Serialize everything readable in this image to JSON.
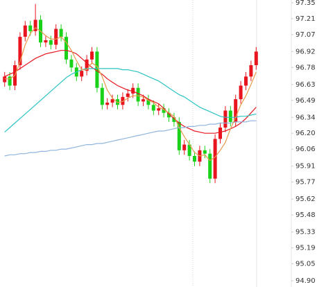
{
  "chart_data": {
    "type": "candlestick",
    "up_color": "#e8141e",
    "down_color": "#19d219",
    "open": [
      96.65,
      96.7,
      96.62,
      96.8,
      97.05,
      97.15,
      97.1,
      97.2,
      97.0,
      97.02,
      96.98,
      97.12,
      97.05,
      96.85,
      96.78,
      96.7,
      96.75,
      96.85,
      96.92,
      96.6,
      96.45,
      96.47,
      96.5,
      96.45,
      96.52,
      96.55,
      96.6,
      96.48,
      96.5,
      96.45,
      96.4,
      96.42,
      96.38,
      96.34,
      96.3,
      96.05,
      96.1,
      96.0,
      95.95,
      96.05,
      96.02,
      95.8,
      96.15,
      96.25,
      96.4,
      96.3,
      96.5,
      96.62,
      96.7,
      96.8
    ],
    "high": [
      96.74,
      96.74,
      96.84,
      97.09,
      97.19,
      97.19,
      97.34,
      97.24,
      97.06,
      97.06,
      97.16,
      97.16,
      97.09,
      96.89,
      96.82,
      96.79,
      96.89,
      96.96,
      96.96,
      96.64,
      96.51,
      96.54,
      96.54,
      96.56,
      96.59,
      96.64,
      96.64,
      96.54,
      96.54,
      96.49,
      96.46,
      96.46,
      96.42,
      96.38,
      96.34,
      96.14,
      96.14,
      96.04,
      96.09,
      96.09,
      96.06,
      96.19,
      96.29,
      96.44,
      96.44,
      96.54,
      96.66,
      96.74,
      96.84,
      96.96
    ],
    "low": [
      96.61,
      96.58,
      96.58,
      96.76,
      97.01,
      97.06,
      97.06,
      96.96,
      96.96,
      96.94,
      96.94,
      97.01,
      96.81,
      96.74,
      96.66,
      96.66,
      96.71,
      96.81,
      96.56,
      96.41,
      96.41,
      96.43,
      96.41,
      96.41,
      96.48,
      96.51,
      96.44,
      96.44,
      96.41,
      96.36,
      96.36,
      96.34,
      96.3,
      96.26,
      96.01,
      96.01,
      95.96,
      95.91,
      95.91,
      95.98,
      95.76,
      95.76,
      96.11,
      96.21,
      96.26,
      96.26,
      96.46,
      96.58,
      96.66,
      96.76
    ],
    "close": [
      96.7,
      96.62,
      96.8,
      97.05,
      97.15,
      97.1,
      97.2,
      97.0,
      97.02,
      96.98,
      97.12,
      97.05,
      96.85,
      96.78,
      96.7,
      96.75,
      96.85,
      96.92,
      96.6,
      96.45,
      96.47,
      96.5,
      96.45,
      96.52,
      96.55,
      96.6,
      96.48,
      96.5,
      96.45,
      96.4,
      96.42,
      96.38,
      96.34,
      96.3,
      96.05,
      96.1,
      96.0,
      95.95,
      96.05,
      96.02,
      95.8,
      96.15,
      96.25,
      96.4,
      96.3,
      96.5,
      96.62,
      96.7,
      96.8,
      96.92
    ],
    "series": [
      {
        "color": "#e8141e",
        "values": [
          96.7,
          96.72,
          96.74,
          96.77,
          96.8,
          96.83,
          96.86,
          96.88,
          96.9,
          96.91,
          96.92,
          96.93,
          96.93,
          96.92,
          96.9,
          96.86,
          96.82,
          96.78,
          96.75,
          96.72,
          96.68,
          96.65,
          96.62,
          96.6,
          96.58,
          96.57,
          96.55,
          96.53,
          96.5,
          96.48,
          96.46,
          96.42,
          96.37,
          96.33,
          96.29,
          96.26,
          96.24,
          96.22,
          96.21,
          96.2,
          96.2,
          96.2,
          96.21,
          96.22,
          96.24,
          96.26,
          96.29,
          96.33,
          96.38,
          96.43
        ]
      },
      {
        "color": "#2bc3c3",
        "values": [
          96.21,
          96.25,
          96.29,
          96.33,
          96.37,
          96.41,
          96.45,
          96.49,
          96.53,
          96.57,
          96.61,
          96.65,
          96.69,
          96.72,
          96.74,
          96.76,
          96.77,
          96.77,
          96.77,
          96.77,
          96.77,
          96.77,
          96.77,
          96.76,
          96.76,
          96.75,
          96.74,
          96.72,
          96.7,
          96.68,
          96.66,
          96.63,
          96.6,
          96.57,
          96.54,
          96.52,
          96.49,
          96.46,
          96.43,
          96.41,
          96.39,
          96.37,
          96.35,
          96.34,
          96.34,
          96.34,
          96.35,
          96.35,
          96.36,
          96.37
        ]
      },
      {
        "color": "#8fb4dc",
        "values": [
          96.0,
          96.01,
          96.01,
          96.02,
          96.02,
          96.03,
          96.03,
          96.04,
          96.04,
          96.05,
          96.05,
          96.06,
          96.06,
          96.07,
          96.08,
          96.09,
          96.1,
          96.1,
          96.11,
          96.11,
          96.12,
          96.13,
          96.14,
          96.15,
          96.16,
          96.17,
          96.18,
          96.19,
          96.2,
          96.21,
          96.22,
          96.22,
          96.23,
          96.24,
          96.25,
          96.25,
          96.26,
          96.26,
          96.27,
          96.27,
          96.28,
          96.28,
          96.29,
          96.29,
          96.29,
          96.3,
          96.3,
          96.3,
          96.31,
          96.31
        ]
      },
      {
        "color": "#e89a4a",
        "values": [
          96.68,
          96.68,
          96.71,
          96.83,
          96.98,
          97.08,
          97.13,
          97.1,
          97.06,
          97.03,
          97.03,
          97.05,
          97.0,
          96.93,
          96.84,
          96.76,
          96.76,
          96.82,
          96.79,
          96.7,
          96.58,
          96.51,
          96.47,
          96.48,
          96.51,
          96.53,
          96.53,
          96.52,
          96.49,
          96.47,
          96.43,
          96.41,
          96.38,
          96.35,
          96.25,
          96.17,
          96.1,
          96.03,
          96.0,
          96.01,
          95.96,
          95.99,
          96.05,
          96.12,
          96.24,
          96.34,
          96.45,
          96.53,
          96.63,
          96.74
        ]
      }
    ],
    "ylim": [
      94.9,
      97.35
    ],
    "yticks": [
      {
        "value": 94.9,
        "label": "94.90"
      },
      95.05,
      95.19,
      95.33,
      95.48,
      95.62,
      95.77,
      95.91,
      96.06,
      {
        "value": 96.2,
        "label": "96.20"
      },
      96.34,
      96.49,
      96.63,
      96.78,
      96.92,
      97.07,
      97.21,
      97.35
    ]
  }
}
